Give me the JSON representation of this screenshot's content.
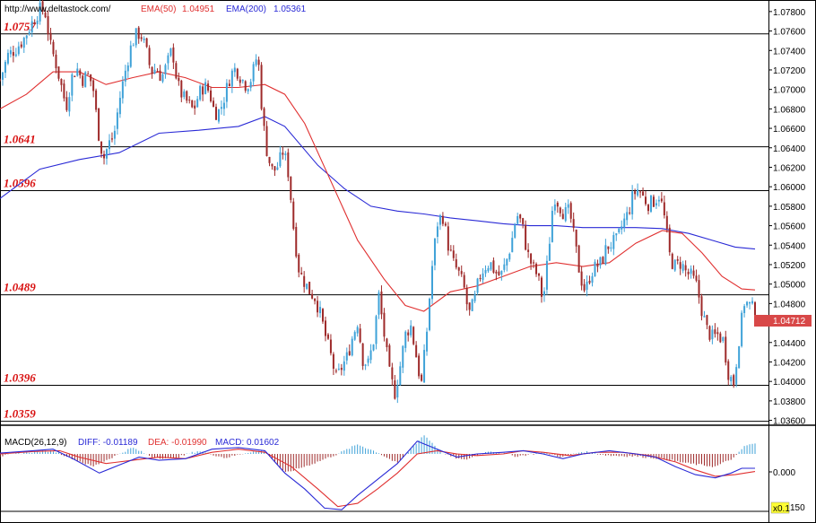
{
  "header": {
    "url": "http://www.deltastock.com/",
    "ema50_label": "EMA(50)",
    "ema50_value": "1.04951",
    "ema200_label": "EMA(200)",
    "ema200_value": "1.05361"
  },
  "macd_header": {
    "title": "MACD(26,12,9)",
    "diff": "DIFF: -0.01189",
    "dea": "DEA: -0.01990",
    "macd": "MACD: 0.01602"
  },
  "current_price_label": "1.04712",
  "macd_tick_labels": [
    "0.000",
    "150"
  ],
  "scale_badge": "x0.1",
  "colors": {
    "up": "#3fa2d8",
    "down": "#9e2a2a",
    "ema50": "#e03030",
    "ema200": "#2a2ad6",
    "level_text": "#d81010",
    "dif": "#2a2ad6",
    "dea": "#e03030",
    "price_badge": "#d84848"
  },
  "chart_data": [
    {
      "type": "candlestick",
      "ylim": [
        1.0355,
        1.079
      ],
      "y_ticks": [
        1.078,
        1.076,
        1.074,
        1.072,
        1.07,
        1.068,
        1.066,
        1.064,
        1.062,
        1.06,
        1.058,
        1.056,
        1.054,
        1.052,
        1.05,
        1.048,
        1.046,
        1.044,
        1.042,
        1.04,
        1.038,
        1.036
      ],
      "y_tick_labels": [
        "1.07800",
        "1.07600",
        "1.07400",
        "1.07200",
        "1.07000",
        "1.06800",
        "1.06600",
        "1.06400",
        "1.06200",
        "1.06000",
        "1.05800",
        "1.05600",
        "1.05400",
        "1.05200",
        "1.05000",
        "1.04800",
        "1.04600",
        "1.04400",
        "1.04200",
        "1.04000",
        "1.03800",
        "1.03600"
      ],
      "levels": [
        {
          "value": 1.0757,
          "label": "1.0757"
        },
        {
          "value": 1.0641,
          "label": "1.0641"
        },
        {
          "value": 1.0596,
          "label": "1.0596"
        },
        {
          "value": 1.0489,
          "label": "1.0489"
        },
        {
          "value": 1.0396,
          "label": "1.0396"
        },
        {
          "value": 1.0359,
          "label": "1.0359"
        }
      ],
      "current_price": 1.04712,
      "close_path": [
        [
          0,
          1.071
        ],
        [
          6,
          1.0735
        ],
        [
          12,
          1.0742
        ],
        [
          18,
          1.0752
        ],
        [
          24,
          1.0768
        ],
        [
          30,
          1.0782
        ],
        [
          34,
          1.078
        ],
        [
          38,
          1.0745
        ],
        [
          42,
          1.0728
        ],
        [
          46,
          1.0705
        ],
        [
          50,
          1.0682
        ],
        [
          54,
          1.0712
        ],
        [
          58,
          1.0722
        ],
        [
          62,
          1.071
        ],
        [
          66,
          1.0715
        ],
        [
          70,
          1.0705
        ],
        [
          74,
          1.0658
        ],
        [
          78,
          1.0628
        ],
        [
          82,
          1.0644
        ],
        [
          86,
          1.0652
        ],
        [
          90,
          1.0688
        ],
        [
          94,
          1.0715
        ],
        [
          98,
          1.074
        ],
        [
          102,
          1.0755
        ],
        [
          106,
          1.0758
        ],
        [
          110,
          1.0742
        ],
        [
          114,
          1.0718
        ],
        [
          118,
          1.0722
        ],
        [
          122,
          1.0712
        ],
        [
          126,
          1.0725
        ],
        [
          130,
          1.0742
        ],
        [
          134,
          1.0705
        ],
        [
          138,
          1.0692
        ],
        [
          142,
          1.0686
        ],
        [
          146,
          1.0678
        ],
        [
          150,
          1.0695
        ],
        [
          154,
          1.0704
        ],
        [
          158,
          1.0698
        ],
        [
          162,
          1.0676
        ],
        [
          166,
          1.0678
        ],
        [
          170,
          1.0695
        ],
        [
          174,
          1.0715
        ],
        [
          178,
          1.0722
        ],
        [
          182,
          1.0712
        ],
        [
          186,
          1.0704
        ],
        [
          190,
          1.0712
        ],
        [
          194,
          1.0735
        ],
        [
          196,
          1.0718
        ],
        [
          198,
          1.0672
        ],
        [
          202,
          1.0632
        ],
        [
          206,
          1.0615
        ],
        [
          210,
          1.0622
        ],
        [
          214,
          1.0638
        ],
        [
          218,
          1.0612
        ],
        [
          222,
          1.0552
        ],
        [
          226,
          1.0512
        ],
        [
          230,
          1.0502
        ],
        [
          234,
          1.0492
        ],
        [
          238,
          1.0486
        ],
        [
          242,
          1.0468
        ],
        [
          246,
          1.0445
        ],
        [
          250,
          1.0425
        ],
        [
          254,
          1.0402
        ],
        [
          258,
          1.0415
        ],
        [
          262,
          1.0425
        ],
        [
          266,
          1.0445
        ],
        [
          270,
          1.0462
        ],
        [
          274,
          1.0422
        ],
        [
          278,
          1.0418
        ],
        [
          282,
          1.0442
        ],
        [
          286,
          1.0488
        ],
        [
          290,
          1.0448
        ],
        [
          294,
          1.0408
        ],
        [
          298,
          1.0388
        ],
        [
          302,
          1.0415
        ],
        [
          306,
          1.0448
        ],
        [
          310,
          1.0458
        ],
        [
          314,
          1.0428
        ],
        [
          318,
          1.0395
        ],
        [
          322,
          1.0448
        ],
        [
          326,
          1.0515
        ],
        [
          330,
          1.0562
        ],
        [
          334,
          1.0572
        ],
        [
          338,
          1.0542
        ],
        [
          342,
          1.0522
        ],
        [
          346,
          1.0512
        ],
        [
          350,
          1.0498
        ],
        [
          354,
          1.0468
        ],
        [
          358,
          1.0482
        ],
        [
          362,
          1.0508
        ],
        [
          366,
          1.0518
        ],
        [
          370,
          1.0522
        ],
        [
          374,
          1.0512
        ],
        [
          378,
          1.0508
        ],
        [
          382,
          1.0522
        ],
        [
          386,
          1.0542
        ],
        [
          390,
          1.0572
        ],
        [
          394,
          1.0562
        ],
        [
          398,
          1.0532
        ],
        [
          402,
          1.0518
        ],
        [
          406,
          1.0508
        ],
        [
          410,
          1.0482
        ],
        [
          414,
          1.0532
        ],
        [
          418,
          1.0592
        ],
        [
          422,
          1.0582
        ],
        [
          426,
          1.0572
        ],
        [
          430,
          1.0575
        ],
        [
          434,
          1.0542
        ],
        [
          438,
          1.0508
        ],
        [
          442,
          1.0492
        ],
        [
          446,
          1.0512
        ],
        [
          450,
          1.0518
        ],
        [
          454,
          1.0522
        ],
        [
          458,
          1.0538
        ],
        [
          462,
          1.0542
        ],
        [
          466,
          1.0545
        ],
        [
          470,
          1.0562
        ],
        [
          474,
          1.0572
        ],
        [
          478,
          1.0592
        ],
        [
          482,
          1.0598
        ],
        [
          486,
          1.0588
        ],
        [
          490,
          1.0582
        ],
        [
          494,
          1.0586
        ],
        [
          498,
          1.0592
        ],
        [
          502,
          1.0565
        ],
        [
          506,
          1.0525
        ],
        [
          510,
          1.0518
        ],
        [
          514,
          1.0522
        ],
        [
          518,
          1.0512
        ],
        [
          522,
          1.0508
        ],
        [
          526,
          1.0498
        ],
        [
          530,
          1.0472
        ],
        [
          534,
          1.0452
        ],
        [
          538,
          1.0445
        ],
        [
          542,
          1.0448
        ],
        [
          546,
          1.0442
        ],
        [
          550,
          1.0408
        ],
        [
          554,
          1.0398
        ],
        [
          558,
          1.0445
        ],
        [
          562,
          1.0482
        ],
        [
          566,
          1.0478
        ],
        [
          570,
          1.0472
        ]
      ],
      "ema50_path": [
        [
          0,
          1.068
        ],
        [
          20,
          1.0695
        ],
        [
          40,
          1.0718
        ],
        [
          60,
          1.0718
        ],
        [
          80,
          1.0705
        ],
        [
          100,
          1.0712
        ],
        [
          120,
          1.0718
        ],
        [
          140,
          1.0712
        ],
        [
          160,
          1.0702
        ],
        [
          180,
          1.0702
        ],
        [
          200,
          1.0705
        ],
        [
          215,
          1.0695
        ],
        [
          230,
          1.0665
        ],
        [
          250,
          1.0605
        ],
        [
          270,
          1.0545
        ],
        [
          290,
          1.0505
        ],
        [
          306,
          1.0478
        ],
        [
          320,
          1.0472
        ],
        [
          340,
          1.0492
        ],
        [
          360,
          1.0498
        ],
        [
          380,
          1.0508
        ],
        [
          400,
          1.0518
        ],
        [
          420,
          1.0522
        ],
        [
          440,
          1.0518
        ],
        [
          460,
          1.0522
        ],
        [
          480,
          1.0542
        ],
        [
          500,
          1.0555
        ],
        [
          515,
          1.0552
        ],
        [
          530,
          1.0532
        ],
        [
          545,
          1.0508
        ],
        [
          560,
          1.0495
        ],
        [
          570,
          1.0494
        ]
      ],
      "ema200_path": [
        [
          0,
          1.0588
        ],
        [
          30,
          1.0618
        ],
        [
          60,
          1.0628
        ],
        [
          90,
          1.0635
        ],
        [
          120,
          1.0655
        ],
        [
          150,
          1.0658
        ],
        [
          180,
          1.0662
        ],
        [
          200,
          1.0672
        ],
        [
          215,
          1.0662
        ],
        [
          240,
          1.0622
        ],
        [
          260,
          1.0598
        ],
        [
          280,
          1.058
        ],
        [
          300,
          1.0575
        ],
        [
          320,
          1.0572
        ],
        [
          340,
          1.0568
        ],
        [
          360,
          1.0565
        ],
        [
          380,
          1.0562
        ],
        [
          400,
          1.056
        ],
        [
          420,
          1.056
        ],
        [
          440,
          1.0558
        ],
        [
          460,
          1.0558
        ],
        [
          480,
          1.0558
        ],
        [
          500,
          1.0557
        ],
        [
          520,
          1.0552
        ],
        [
          540,
          1.0544
        ],
        [
          555,
          1.0538
        ],
        [
          570,
          1.0536
        ]
      ]
    },
    {
      "type": "bar",
      "title": "MACD(26,12,9)",
      "ylim": [
        -0.036,
        0.018
      ],
      "y_tick": 0.0,
      "hist_path": [
        [
          0,
          -0.0015
        ],
        [
          20,
          0.001
        ],
        [
          40,
          0.002
        ],
        [
          55,
          -0.003
        ],
        [
          70,
          -0.008
        ],
        [
          85,
          -0.002
        ],
        [
          100,
          0.004
        ],
        [
          115,
          -0.002
        ],
        [
          130,
          -0.003
        ],
        [
          150,
          0.002
        ],
        [
          170,
          -0.0025
        ],
        [
          190,
          0.0015
        ],
        [
          200,
          0.002
        ],
        [
          215,
          -0.012
        ],
        [
          235,
          -0.0065
        ],
        [
          255,
          0.0
        ],
        [
          270,
          0.006
        ],
        [
          285,
          0.001
        ],
        [
          300,
          -0.006
        ],
        [
          320,
          0.012
        ],
        [
          335,
          0.0
        ],
        [
          350,
          -0.004
        ],
        [
          370,
          0.002
        ],
        [
          390,
          -0.0015
        ],
        [
          410,
          0.001
        ],
        [
          425,
          -0.002
        ],
        [
          440,
          0.0015
        ],
        [
          460,
          -0.001
        ],
        [
          480,
          -0.0015
        ],
        [
          500,
          -0.003
        ],
        [
          520,
          -0.006
        ],
        [
          540,
          -0.008
        ],
        [
          555,
          -0.002
        ],
        [
          562,
          0.005
        ],
        [
          570,
          0.0065
        ]
      ],
      "dif_path": [
        [
          0,
          0.0005
        ],
        [
          25,
          0.002
        ],
        [
          40,
          0.003
        ],
        [
          55,
          -0.003
        ],
        [
          75,
          -0.012
        ],
        [
          90,
          -0.007
        ],
        [
          105,
          -0.002
        ],
        [
          120,
          -0.004
        ],
        [
          140,
          -0.003
        ],
        [
          160,
          0.003
        ],
        [
          180,
          0.004
        ],
        [
          200,
          0.002
        ],
        [
          215,
          -0.012
        ],
        [
          230,
          -0.022
        ],
        [
          245,
          -0.034
        ],
        [
          258,
          -0.035
        ],
        [
          270,
          -0.026
        ],
        [
          285,
          -0.016
        ],
        [
          300,
          -0.006
        ],
        [
          315,
          0.008
        ],
        [
          330,
          0.003
        ],
        [
          345,
          -0.002
        ],
        [
          360,
          0.0
        ],
        [
          380,
          0.001
        ],
        [
          395,
          0.002
        ],
        [
          410,
          0.0
        ],
        [
          425,
          -0.003
        ],
        [
          440,
          0.0
        ],
        [
          460,
          0.002
        ],
        [
          480,
          0.0
        ],
        [
          495,
          -0.002
        ],
        [
          510,
          -0.008
        ],
        [
          525,
          -0.013
        ],
        [
          540,
          -0.015
        ],
        [
          552,
          -0.012
        ],
        [
          560,
          -0.009
        ],
        [
          570,
          -0.009
        ]
      ],
      "dea_path": [
        [
          0,
          0.0
        ],
        [
          25,
          0.0015
        ],
        [
          45,
          0.002
        ],
        [
          60,
          -0.002
        ],
        [
          80,
          -0.006
        ],
        [
          100,
          -0.004
        ],
        [
          120,
          -0.002
        ],
        [
          140,
          -0.003
        ],
        [
          160,
          0.001
        ],
        [
          180,
          0.003
        ],
        [
          200,
          0.001
        ],
        [
          220,
          -0.008
        ],
        [
          240,
          -0.022
        ],
        [
          255,
          -0.033
        ],
        [
          270,
          -0.031
        ],
        [
          285,
          -0.022
        ],
        [
          300,
          -0.012
        ],
        [
          315,
          0.0
        ],
        [
          330,
          0.002
        ],
        [
          345,
          0.0
        ],
        [
          360,
          -0.001
        ],
        [
          380,
          0.0
        ],
        [
          395,
          0.002
        ],
        [
          410,
          0.001
        ],
        [
          430,
          -0.001
        ],
        [
          450,
          0.001
        ],
        [
          470,
          0.001
        ],
        [
          490,
          -0.001
        ],
        [
          510,
          -0.005
        ],
        [
          525,
          -0.01
        ],
        [
          540,
          -0.014
        ],
        [
          555,
          -0.013
        ],
        [
          570,
          -0.011
        ]
      ]
    }
  ]
}
